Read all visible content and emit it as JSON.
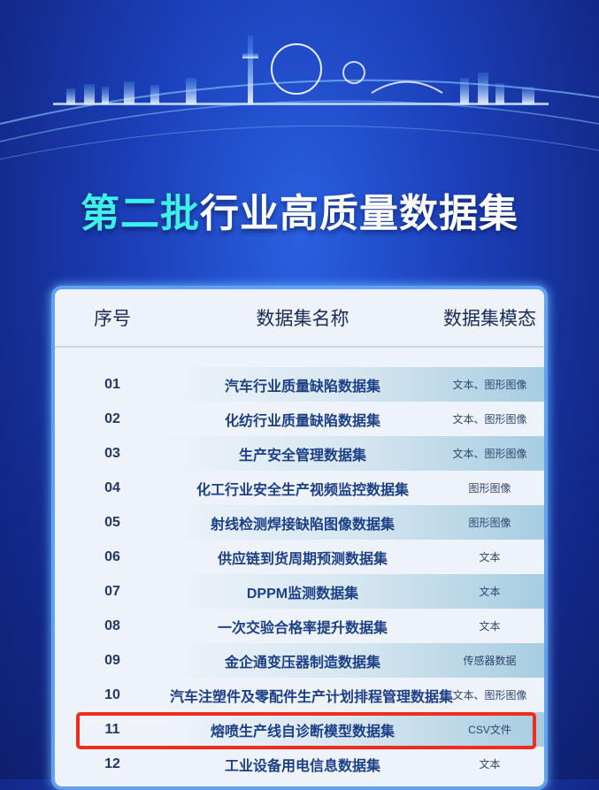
{
  "title": {
    "highlight": "第二批",
    "rest": "行业高质量数据集"
  },
  "table": {
    "headers": [
      "序号",
      "数据集名称",
      "数据集模态"
    ],
    "rows": [
      {
        "no": "01",
        "name": "汽车行业质量缺陷数据集",
        "modality": "文本、图形图像"
      },
      {
        "no": "02",
        "name": "化纺行业质量缺陷数据集",
        "modality": "文本、图形图像"
      },
      {
        "no": "03",
        "name": "生产安全管理数据集",
        "modality": "文本、图形图像"
      },
      {
        "no": "04",
        "name": "化工行业安全生产视频监控数据集",
        "modality": "图形图像"
      },
      {
        "no": "05",
        "name": "射线检测焊接缺陷图像数据集",
        "modality": "图形图像"
      },
      {
        "no": "06",
        "name": "供应链到货周期预测数据集",
        "modality": "文本"
      },
      {
        "no": "07",
        "name": "DPPM监测数据集",
        "modality": "文本"
      },
      {
        "no": "08",
        "name": "一次交验合格率提升数据集",
        "modality": "文本"
      },
      {
        "no": "09",
        "name": "金企通变压器制造数据集",
        "modality": "传感器数据"
      },
      {
        "no": "10",
        "name": "汽车注塑件及零配件生产计划排程管理数据集",
        "modality": "文本、图形图像"
      },
      {
        "no": "11",
        "name": "熔喷生产线自诊断模型数据集",
        "modality": "CSV文件"
      },
      {
        "no": "12",
        "name": "工业设备用电信息数据集",
        "modality": "文本"
      }
    ],
    "highlighted_row": "11"
  },
  "colors": {
    "highlight_box": "#f02b20",
    "title_accent": "#3ff0e8"
  }
}
